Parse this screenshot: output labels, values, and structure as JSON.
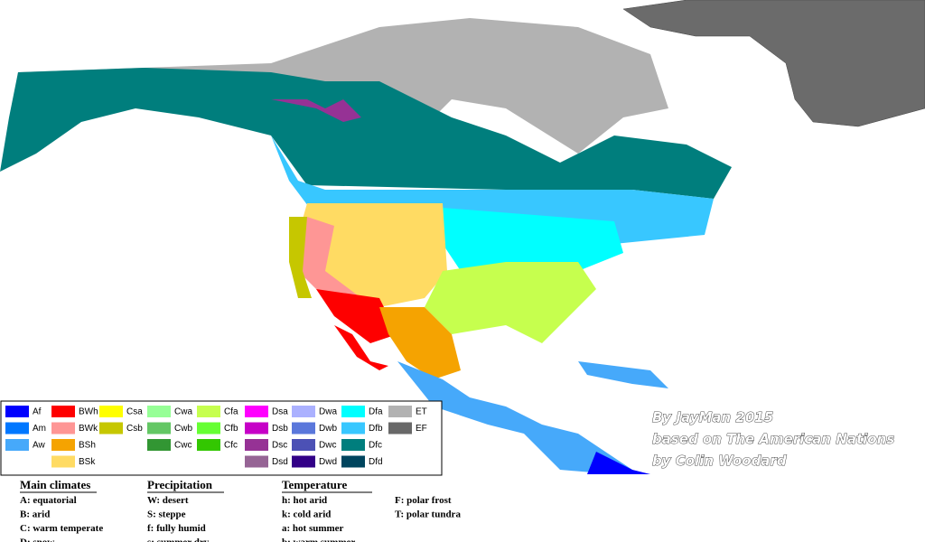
{
  "legend": {
    "items": [
      {
        "code": "Af",
        "color": "#0000fe"
      },
      {
        "code": "Am",
        "color": "#0077ff"
      },
      {
        "code": "Aw",
        "color": "#46a9fa"
      },
      {
        "code": "BWh",
        "color": "#fe0000"
      },
      {
        "code": "BWk",
        "color": "#fe9695"
      },
      {
        "code": "BSh",
        "color": "#f5a301"
      },
      {
        "code": "BSk",
        "color": "#ffdb63"
      },
      {
        "code": "Csa",
        "color": "#ffff00"
      },
      {
        "code": "Csb",
        "color": "#c6c700"
      },
      {
        "code": "Cwa",
        "color": "#96ff96"
      },
      {
        "code": "Cwb",
        "color": "#63c764"
      },
      {
        "code": "Cwc",
        "color": "#329633"
      },
      {
        "code": "Cfa",
        "color": "#c6ff4e"
      },
      {
        "code": "Cfb",
        "color": "#66ff33"
      },
      {
        "code": "Cfc",
        "color": "#33c701"
      },
      {
        "code": "Dsa",
        "color": "#ff00fe"
      },
      {
        "code": "Dsb",
        "color": "#c600c7"
      },
      {
        "code": "Dsc",
        "color": "#963295"
      },
      {
        "code": "Dsd",
        "color": "#966495"
      },
      {
        "code": "Dwa",
        "color": "#abb1ff"
      },
      {
        "code": "Dwb",
        "color": "#5a77db"
      },
      {
        "code": "Dwc",
        "color": "#4c51b5"
      },
      {
        "code": "Dwd",
        "color": "#320087"
      },
      {
        "code": "Dfa",
        "color": "#00ffff"
      },
      {
        "code": "Dfb",
        "color": "#38c7ff"
      },
      {
        "code": "Dfc",
        "color": "#007e7d"
      },
      {
        "code": "Dfd",
        "color": "#00455e"
      },
      {
        "code": "ET",
        "color": "#b2b2b2"
      },
      {
        "code": "EF",
        "color": "#686868"
      }
    ]
  },
  "credits": {
    "lines": [
      "By JayMan 2015",
      "based on The American Nations",
      "by Colin Woodard"
    ]
  },
  "key": {
    "columns": [
      {
        "heading": "Main climates",
        "items": [
          "A: equatorial",
          "B: arid",
          "C: warm temperate",
          "D: snow"
        ]
      },
      {
        "heading": "Precipitation",
        "items": [
          "W: desert",
          "S:  steppe",
          "f: fully humid",
          "s: summer dry"
        ]
      },
      {
        "heading": "Temperature",
        "items": [
          "h: hot arid",
          "k: cold arid",
          "a: hot summer",
          "b: warm summer"
        ]
      },
      {
        "heading": null,
        "items": [
          "F: polar frost",
          "T: polar tundra"
        ]
      }
    ]
  }
}
